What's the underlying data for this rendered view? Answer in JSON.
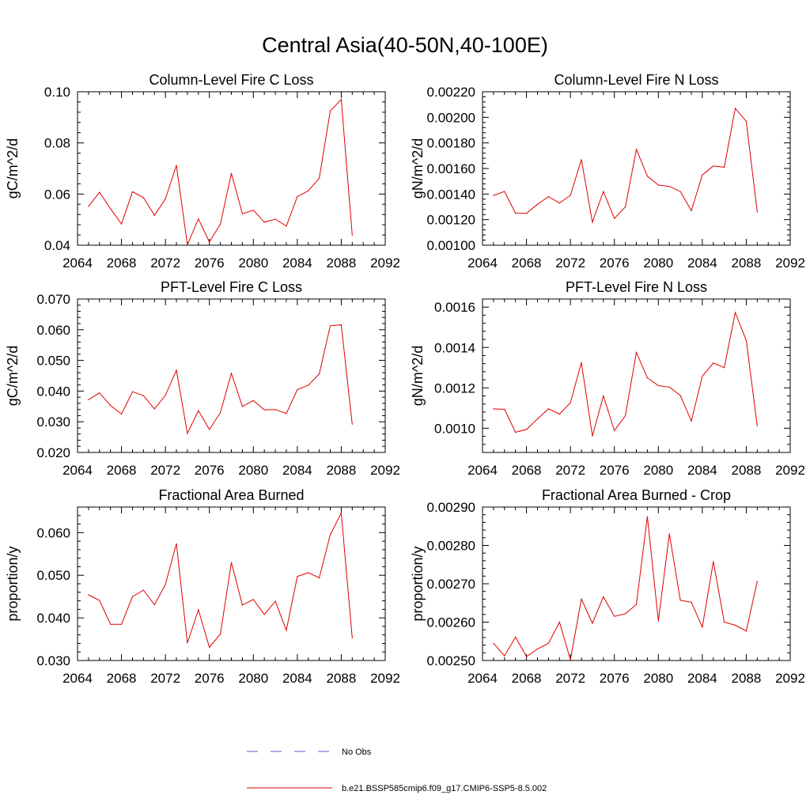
{
  "title": "Central Asia(40-50N,40-100E)",
  "legend": [
    {
      "label": "No Obs",
      "color": "#5a5ad6",
      "dash": true
    },
    {
      "label": "b.e21.BSSP585cmip6.f09_g17.CMIP6-SSP5-8.5.002",
      "color": "#e00000",
      "dash": false
    }
  ],
  "chart_data": [
    {
      "type": "line",
      "title": "Column-Level Fire C Loss",
      "ylabel": "gC/m^2/d",
      "xlim": [
        2064,
        2092
      ],
      "xticks": [
        "2064",
        "2068",
        "2072",
        "2076",
        "2080",
        "2084",
        "2088",
        "2092"
      ],
      "ylim": [
        0.04,
        0.1
      ],
      "yticks": [
        "0.04",
        "0.06",
        "0.08",
        "0.10"
      ],
      "x": [
        2065,
        2066,
        2067,
        2068,
        2069,
        2070,
        2071,
        2072,
        2073,
        2074,
        2075,
        2076,
        2077,
        2078,
        2079,
        2080,
        2081,
        2082,
        2083,
        2084,
        2085,
        2086,
        2087,
        2088,
        2089
      ],
      "series": [
        {
          "color": "#e00000",
          "values": [
            0.0552,
            0.0607,
            0.0543,
            0.0483,
            0.0609,
            0.0586,
            0.0517,
            0.0581,
            0.0712,
            0.0402,
            0.0503,
            0.0412,
            0.0483,
            0.0681,
            0.0523,
            0.0537,
            0.049,
            0.0502,
            0.0475,
            0.059,
            0.0613,
            0.0662,
            0.0925,
            0.097,
            0.044
          ]
        }
      ]
    },
    {
      "type": "line",
      "title": "Column-Level Fire N Loss",
      "ylabel": "gN/m^2/d",
      "xlim": [
        2064,
        2092
      ],
      "xticks": [
        "2064",
        "2068",
        "2072",
        "2076",
        "2080",
        "2084",
        "2088",
        "2092"
      ],
      "ylim": [
        0.001,
        0.0022
      ],
      "yticks": [
        "0.00100",
        "0.00120",
        "0.00140",
        "0.00160",
        "0.00180",
        "0.00200",
        "0.00220"
      ],
      "x": [
        2065,
        2066,
        2067,
        2068,
        2069,
        2070,
        2071,
        2072,
        2073,
        2074,
        2075,
        2076,
        2077,
        2078,
        2079,
        2080,
        2081,
        2082,
        2083,
        2084,
        2085,
        2086,
        2087,
        2088,
        2089
      ],
      "series": [
        {
          "color": "#e00000",
          "values": [
            0.00139,
            0.00142,
            0.00125,
            0.00125,
            0.00132,
            0.00138,
            0.00133,
            0.00139,
            0.00167,
            0.00118,
            0.00142,
            0.00121,
            0.0013,
            0.00175,
            0.00154,
            0.00147,
            0.00146,
            0.00142,
            0.00127,
            0.00155,
            0.00162,
            0.00161,
            0.00207,
            0.00197,
            0.00126
          ]
        }
      ]
    },
    {
      "type": "line",
      "title": "PFT-Level Fire C Loss",
      "ylabel": "gC/m^2/d",
      "xlim": [
        2064,
        2092
      ],
      "xticks": [
        "2064",
        "2068",
        "2072",
        "2076",
        "2080",
        "2084",
        "2088",
        "2092"
      ],
      "ylim": [
        0.02,
        0.07
      ],
      "yticks": [
        "0.020",
        "0.030",
        "0.040",
        "0.050",
        "0.060",
        "0.070"
      ],
      "x": [
        2065,
        2066,
        2067,
        2068,
        2069,
        2070,
        2071,
        2072,
        2073,
        2074,
        2075,
        2076,
        2077,
        2078,
        2079,
        2080,
        2081,
        2082,
        2083,
        2084,
        2085,
        2086,
        2087,
        2088,
        2089
      ],
      "series": [
        {
          "color": "#e00000",
          "values": [
            0.0372,
            0.0394,
            0.0353,
            0.0325,
            0.0398,
            0.0385,
            0.0342,
            0.0386,
            0.0468,
            0.0262,
            0.0336,
            0.0275,
            0.033,
            0.0458,
            0.035,
            0.0369,
            0.0339,
            0.034,
            0.0327,
            0.0405,
            0.0419,
            0.0456,
            0.0613,
            0.0616,
            0.0292
          ]
        }
      ]
    },
    {
      "type": "line",
      "title": "PFT-Level Fire N Loss",
      "ylabel": "gN/m^2/d",
      "xlim": [
        2064,
        2092
      ],
      "xticks": [
        "2064",
        "2068",
        "2072",
        "2076",
        "2080",
        "2084",
        "2088",
        "2092"
      ],
      "ylim": [
        0.00088,
        0.00164
      ],
      "yticks": [
        "0.0010",
        "0.0012",
        "0.0014",
        "0.0016"
      ],
      "x": [
        2065,
        2066,
        2067,
        2068,
        2069,
        2070,
        2071,
        2072,
        2073,
        2074,
        2075,
        2076,
        2077,
        2078,
        2079,
        2080,
        2081,
        2082,
        2083,
        2084,
        2085,
        2086,
        2087,
        2088,
        2089
      ],
      "series": [
        {
          "color": "#e00000",
          "values": [
            0.001096,
            0.001094,
            0.00098,
            0.000994,
            0.001046,
            0.001096,
            0.00107,
            0.001126,
            0.001325,
            0.000962,
            0.00116,
            0.000988,
            0.001062,
            0.001375,
            0.00125,
            0.001211,
            0.001204,
            0.001162,
            0.001036,
            0.001258,
            0.001323,
            0.0013,
            0.001573,
            0.001435,
            0.001012
          ]
        }
      ]
    },
    {
      "type": "line",
      "title": "Fractional Area Burned",
      "ylabel": "proportion/y",
      "xlim": [
        2064,
        2092
      ],
      "xticks": [
        "2064",
        "2068",
        "2072",
        "2076",
        "2080",
        "2084",
        "2088",
        "2092"
      ],
      "ylim": [
        0.03,
        0.066
      ],
      "yticks": [
        "0.030",
        "0.040",
        "0.050",
        "0.060"
      ],
      "x": [
        2065,
        2066,
        2067,
        2068,
        2069,
        2070,
        2071,
        2072,
        2073,
        2074,
        2075,
        2076,
        2077,
        2078,
        2079,
        2080,
        2081,
        2082,
        2083,
        2084,
        2085,
        2086,
        2087,
        2088,
        2089
      ],
      "series": [
        {
          "color": "#e00000",
          "values": [
            0.0454,
            0.0441,
            0.0385,
            0.0385,
            0.045,
            0.0465,
            0.0431,
            0.0478,
            0.0574,
            0.0341,
            0.0419,
            0.0331,
            0.0362,
            0.053,
            0.043,
            0.0443,
            0.0408,
            0.0439,
            0.0371,
            0.0497,
            0.0506,
            0.0494,
            0.0595,
            0.0646,
            0.0353
          ]
        }
      ]
    },
    {
      "type": "line",
      "title": "Fractional Area Burned - Crop",
      "ylabel": "proportion/y",
      "xlim": [
        2064,
        2092
      ],
      "xticks": [
        "2064",
        "2068",
        "2072",
        "2076",
        "2080",
        "2084",
        "2088",
        "2092"
      ],
      "ylim": [
        0.0025,
        0.0029
      ],
      "yticks": [
        "0.00250",
        "0.00260",
        "0.00270",
        "0.00280",
        "0.00290"
      ],
      "x": [
        2065,
        2066,
        2067,
        2068,
        2069,
        2070,
        2071,
        2072,
        2073,
        2074,
        2075,
        2076,
        2077,
        2078,
        2079,
        2080,
        2081,
        2082,
        2083,
        2084,
        2085,
        2086,
        2087,
        2088,
        2089
      ],
      "series": [
        {
          "color": "#e00000",
          "values": [
            0.002545,
            0.002512,
            0.002561,
            0.00251,
            0.00253,
            0.002545,
            0.0026,
            0.002502,
            0.00266,
            0.002597,
            0.002666,
            0.002615,
            0.002622,
            0.002646,
            0.002875,
            0.002603,
            0.00283,
            0.002657,
            0.002652,
            0.002587,
            0.002758,
            0.0026,
            0.002592,
            0.002577,
            0.002706
          ]
        }
      ]
    }
  ]
}
